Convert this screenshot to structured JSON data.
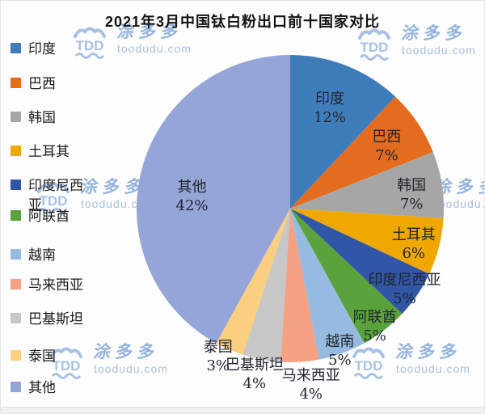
{
  "page": {
    "title": "2021年3月中国钛白粉出口前十国家对比"
  },
  "watermark": {
    "logo_text": "TDD",
    "brand": "涂多多",
    "domain": "toodudu.com"
  },
  "chart_data": {
    "type": "pie",
    "title": "2021年3月中国钛白粉出口前十国家对比",
    "unit": "%",
    "start_angle_deg": 0,
    "direction": "clockwise",
    "legend_position": "left",
    "categories": [
      "印度",
      "巴西",
      "韩国",
      "土耳其",
      "印度尼西亚",
      "阿联酋",
      "越南",
      "马来西亚",
      "巴基斯坦",
      "泰国",
      "其他"
    ],
    "values": [
      12,
      7,
      7,
      6,
      5,
      5,
      5,
      4,
      4,
      3,
      42
    ],
    "percent_labels": [
      "12%",
      "7%",
      "7%",
      "6%",
      "5%",
      "5%",
      "5%",
      "4%",
      "4%",
      "3%",
      "42%"
    ],
    "colors": [
      "#3F7DBA",
      "#E46C1E",
      "#A6A6A6",
      "#EFA800",
      "#3156A5",
      "#5AA23C",
      "#97BBE0",
      "#F4A184",
      "#C7C7C7",
      "#FBCF80",
      "#95A5D8"
    ],
    "label_text_color": "#20242e"
  }
}
